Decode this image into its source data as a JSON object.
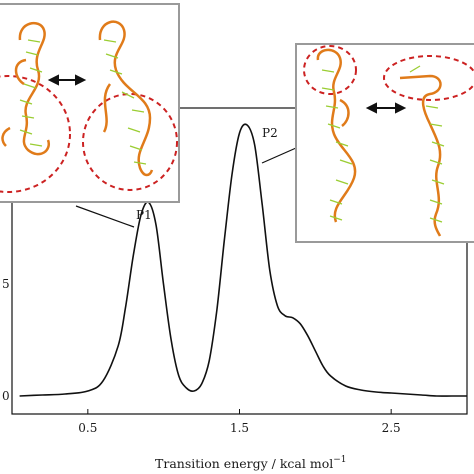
{
  "chart_data": {
    "type": "line",
    "xlabel": "Transition energy / kcal mol",
    "xlabel_superscript": "−1",
    "ylabel": "",
    "xlim": [
      0,
      3.0
    ],
    "ylim": [
      0,
      2.75
    ],
    "xticks": [
      0.5,
      1.5,
      2.5
    ],
    "xtick_labels": [
      "0.5",
      "1.5",
      "2.5"
    ],
    "ytick_labels_partial": [
      "0",
      "5"
    ],
    "grid": false,
    "line_color": "#111111",
    "series": [
      {
        "x": [
          0.05,
          0.2,
          0.35,
          0.5,
          0.6,
          0.7,
          0.75,
          0.8,
          0.85,
          0.9,
          0.95,
          1.0,
          1.05,
          1.1,
          1.15,
          1.2,
          1.25,
          1.3,
          1.35,
          1.4,
          1.45,
          1.5,
          1.55,
          1.6,
          1.65,
          1.7,
          1.75,
          1.8,
          1.85,
          1.9,
          1.95,
          2.0,
          2.05,
          2.1,
          2.2,
          2.3,
          2.4,
          2.5,
          2.6,
          2.7,
          2.8,
          2.9,
          3.0
        ],
        "y": [
          0.0,
          0.01,
          0.02,
          0.05,
          0.15,
          0.5,
          0.9,
          1.4,
          1.8,
          1.93,
          1.7,
          1.1,
          0.55,
          0.2,
          0.08,
          0.05,
          0.12,
          0.35,
          0.85,
          1.55,
          2.2,
          2.62,
          2.7,
          2.5,
          1.9,
          1.25,
          0.9,
          0.8,
          0.78,
          0.72,
          0.6,
          0.45,
          0.3,
          0.2,
          0.1,
          0.06,
          0.04,
          0.03,
          0.02,
          0.01,
          0.0,
          0.0,
          0.0
        ]
      }
    ],
    "annotations": [
      {
        "label": "P1",
        "x": 0.88,
        "y": 1.93
      },
      {
        "label": "P2",
        "x": 1.55,
        "y": 2.7
      }
    ]
  },
  "insets": {
    "left": {
      "description_icons": "rna-hairpin-structures",
      "arrow": "double-arrow"
    },
    "right": {
      "description_icons": "rna-hairpin-structures",
      "arrow": "double-arrow"
    }
  },
  "colors": {
    "backbone": "#e07b1a",
    "dashed_ellipse": "#cc2222",
    "bases": "#9acd32",
    "inset_border": "#999999"
  }
}
